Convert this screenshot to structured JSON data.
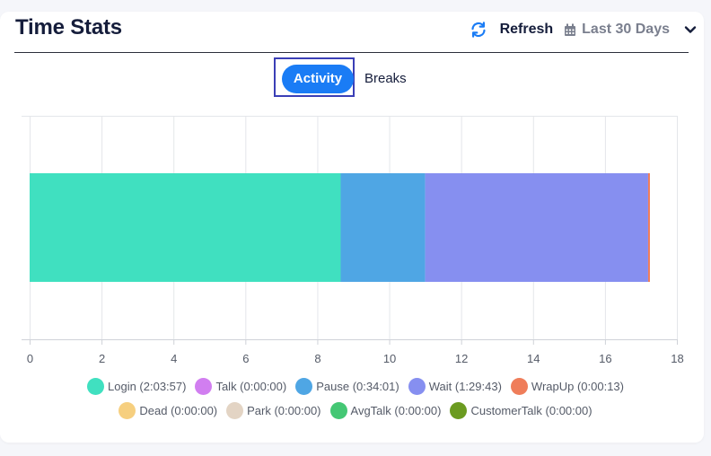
{
  "header": {
    "title": "Time Stats",
    "refresh_label": "Refresh",
    "range_label": "Last 30 Days",
    "icons": {
      "refresh": "refresh-icon",
      "calendar": "calendar-icon",
      "chevron": "chevron-down-icon"
    },
    "accent_color": "#1a7cf5"
  },
  "toggle": {
    "activity_label": "Activity",
    "breaks_label": "Breaks",
    "selected": "Activity"
  },
  "chart_data": {
    "type": "bar",
    "orientation": "horizontal",
    "stacked": true,
    "categories": [
      ""
    ],
    "series": [
      {
        "name": "Login (2:03:57)",
        "values": [
          8.65
        ],
        "color": "#40e0c0"
      },
      {
        "name": "Talk (0:00:00)",
        "values": [
          0
        ],
        "color": "#d17ef0"
      },
      {
        "name": "Pause (0:34:01)",
        "values": [
          2.35
        ],
        "color": "#4fa6e4"
      },
      {
        "name": "Wait (1:29:43)",
        "values": [
          6.2
        ],
        "color": "#868ff0"
      },
      {
        "name": "WrapUp (0:00:13)",
        "values": [
          0.05
        ],
        "color": "#ef7d5a"
      },
      {
        "name": "Dead (0:00:00)",
        "values": [
          0
        ],
        "color": "#f6cf7f"
      },
      {
        "name": "Park (0:00:00)",
        "values": [
          0
        ],
        "color": "#e3d4c4"
      },
      {
        "name": "AvgTalk (0:00:00)",
        "values": [
          0
        ],
        "color": "#44c774"
      },
      {
        "name": "CustomerTalk (0:00:00)",
        "values": [
          0
        ],
        "color": "#6b9b20"
      }
    ],
    "xlim": [
      0,
      18
    ],
    "x_ticks": [
      "0",
      "2",
      "4",
      "6",
      "8",
      "10",
      "12",
      "14",
      "16",
      "18"
    ],
    "grid": true,
    "legend_position": "bottom"
  }
}
